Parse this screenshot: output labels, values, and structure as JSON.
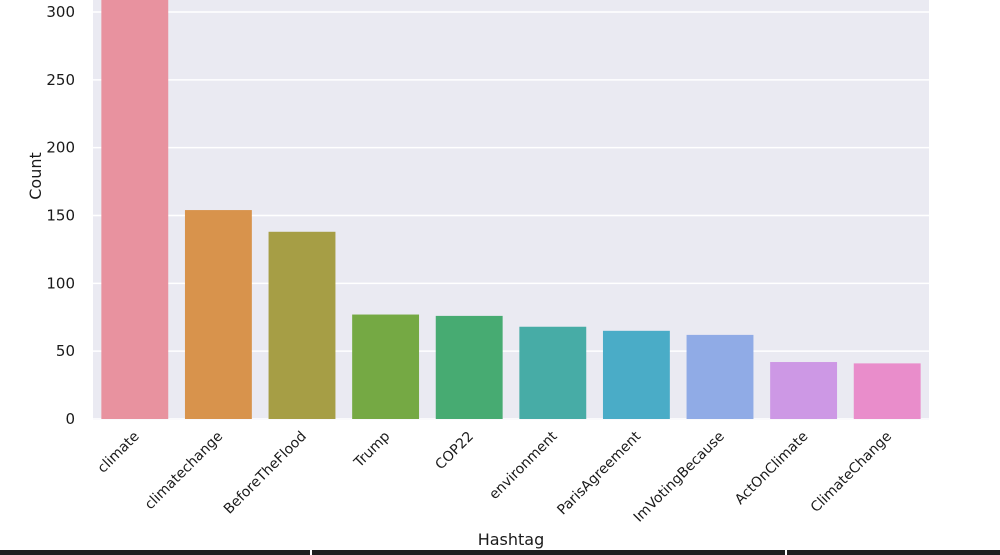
{
  "chart_data": {
    "type": "bar",
    "xlabel": "Hashtag",
    "ylabel": "Count",
    "categories": [
      "climate",
      "climatechange",
      "BeforeTheFlood",
      "Trump",
      "COP22",
      "environment",
      "ParisAgreement",
      "ImVotingBecause",
      "ActOnClimate",
      "ClimateChange"
    ],
    "values": [
      335,
      154,
      138,
      77,
      76,
      68,
      65,
      62,
      42,
      41
    ],
    "colors": [
      "#e8929f",
      "#d8934c",
      "#a69e45",
      "#75a944",
      "#47ab72",
      "#47aca6",
      "#4aacc7",
      "#90abe6",
      "#cd98e5",
      "#e98dcb"
    ],
    "ylim": [
      0,
      310
    ],
    "yticks": [
      0,
      50,
      100,
      150,
      200,
      250,
      300
    ],
    "grid": true,
    "background": "#eaeaf2"
  }
}
